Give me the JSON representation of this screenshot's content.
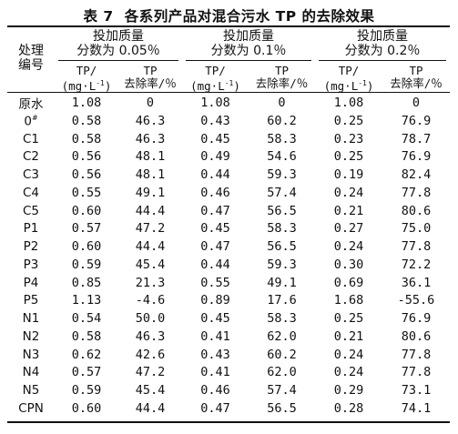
{
  "table": {
    "number": "表 7",
    "title": "各系列产品对混合污水 TP 的去除效果",
    "row_header": [
      "处理",
      "编号"
    ],
    "groups": [
      {
        "line1": "投加质量",
        "line2": "分数为 0.05％"
      },
      {
        "line1": "投加质量",
        "line2": "分数为 0.1％"
      },
      {
        "line1": "投加质量",
        "line2": "分数为 0.2％"
      }
    ],
    "col_tp_line1": "TP/",
    "col_tp_unit": "(mg·L",
    "col_tp_exp": "-1",
    "col_tp_close": ")",
    "col_removal_line1": "TP",
    "col_removal_line2": "去除率/％",
    "rows": [
      {
        "id": "原水",
        "sup": "",
        "v": [
          "1.08",
          "0",
          "1.08",
          "0",
          "1.08",
          "0"
        ]
      },
      {
        "id": "0",
        "sup": "#",
        "v": [
          "0.58",
          "46.3",
          "0.43",
          "60.2",
          "0.25",
          "76.9"
        ]
      },
      {
        "id": "C1",
        "sup": "",
        "v": [
          "0.58",
          "46.3",
          "0.45",
          "58.3",
          "0.23",
          "78.7"
        ]
      },
      {
        "id": "C2",
        "sup": "",
        "v": [
          "0.56",
          "48.1",
          "0.49",
          "54.6",
          "0.25",
          "76.9"
        ]
      },
      {
        "id": "C3",
        "sup": "",
        "v": [
          "0.56",
          "48.1",
          "0.44",
          "59.3",
          "0.19",
          "82.4"
        ]
      },
      {
        "id": "C4",
        "sup": "",
        "v": [
          "0.55",
          "49.1",
          "0.46",
          "57.4",
          "0.24",
          "77.8"
        ]
      },
      {
        "id": "C5",
        "sup": "",
        "v": [
          "0.60",
          "44.4",
          "0.47",
          "56.5",
          "0.21",
          "80.6"
        ]
      },
      {
        "id": "P1",
        "sup": "",
        "v": [
          "0.57",
          "47.2",
          "0.45",
          "58.3",
          "0.27",
          "75.0"
        ]
      },
      {
        "id": "P2",
        "sup": "",
        "v": [
          "0.60",
          "44.4",
          "0.47",
          "56.5",
          "0.24",
          "77.8"
        ]
      },
      {
        "id": "P3",
        "sup": "",
        "v": [
          "0.59",
          "45.4",
          "0.44",
          "59.3",
          "0.30",
          "72.2"
        ]
      },
      {
        "id": "P4",
        "sup": "",
        "v": [
          "0.85",
          "21.3",
          "0.55",
          "49.1",
          "0.69",
          "36.1"
        ]
      },
      {
        "id": "P5",
        "sup": "",
        "v": [
          "1.13",
          "-4.6",
          "0.89",
          "17.6",
          "1.68",
          "-55.6"
        ]
      },
      {
        "id": "N1",
        "sup": "",
        "v": [
          "0.54",
          "50.0",
          "0.45",
          "58.3",
          "0.25",
          "76.9"
        ]
      },
      {
        "id": "N2",
        "sup": "",
        "v": [
          "0.58",
          "46.3",
          "0.41",
          "62.0",
          "0.21",
          "80.6"
        ]
      },
      {
        "id": "N3",
        "sup": "",
        "v": [
          "0.62",
          "42.6",
          "0.43",
          "60.2",
          "0.24",
          "77.8"
        ]
      },
      {
        "id": "N4",
        "sup": "",
        "v": [
          "0.57",
          "47.2",
          "0.41",
          "62.0",
          "0.24",
          "77.8"
        ]
      },
      {
        "id": "N5",
        "sup": "",
        "v": [
          "0.59",
          "45.4",
          "0.46",
          "57.4",
          "0.29",
          "73.1"
        ]
      },
      {
        "id": "CPN",
        "sup": "",
        "v": [
          "0.60",
          "44.4",
          "0.47",
          "56.5",
          "0.28",
          "74.1"
        ]
      }
    ]
  }
}
